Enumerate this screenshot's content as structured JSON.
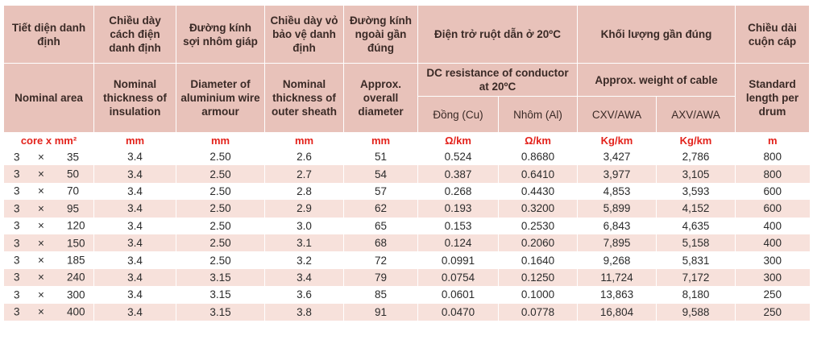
{
  "header": {
    "vi": {
      "area": "Tiết diện danh định",
      "insulation": "Chiều dày cách điện danh định",
      "armour": "Đường kính sợi nhôm giáp",
      "sheath": "Chiều dày vỏ bảo vệ danh định",
      "diameter": "Đường kính ngoài gần đúng",
      "resistance": "Điện trở ruột dẫn ở 20ºC",
      "weight": "Khối lượng gần đúng",
      "length": "Chiều dài cuộn cáp"
    },
    "en": {
      "area": "Nominal area",
      "insulation": "Nominal thickness of insulation",
      "armour": "Diameter of aluminium wire armour",
      "sheath": "Nominal thickness of outer sheath",
      "diameter": "Approx. overall diameter",
      "resistance": "DC resistance of conductor at 20ºC",
      "weight": "Approx. weight of cable",
      "length": "Standard length per drum"
    },
    "sub": {
      "cu": "Đồng (Cu)",
      "al": "Nhôm (Al)",
      "cxv": "CXV/AWA",
      "axv": "AXV/AWA"
    }
  },
  "units": [
    "core x mm²",
    "mm",
    "mm",
    "mm",
    "mm",
    "Ω/km",
    "Ω/km",
    "Kg/km",
    "Kg/km",
    "m"
  ],
  "rows": [
    {
      "core": "3",
      "x": "×",
      "area": "35",
      "ins": "3.4",
      "arm": "2.50",
      "sh": "2.6",
      "dia": "51",
      "cu": "0.524",
      "al": "0.8680",
      "cxv": "3,427",
      "axv": "2,786",
      "len": "800"
    },
    {
      "core": "3",
      "x": "×",
      "area": "50",
      "ins": "3.4",
      "arm": "2.50",
      "sh": "2.7",
      "dia": "54",
      "cu": "0.387",
      "al": "0.6410",
      "cxv": "3,977",
      "axv": "3,105",
      "len": "800"
    },
    {
      "core": "3",
      "x": "×",
      "area": "70",
      "ins": "3.4",
      "arm": "2.50",
      "sh": "2.8",
      "dia": "57",
      "cu": "0.268",
      "al": "0.4430",
      "cxv": "4,853",
      "axv": "3,593",
      "len": "600"
    },
    {
      "core": "3",
      "x": "×",
      "area": "95",
      "ins": "3.4",
      "arm": "2.50",
      "sh": "2.9",
      "dia": "62",
      "cu": "0.193",
      "al": "0.3200",
      "cxv": "5,899",
      "axv": "4,152",
      "len": "600"
    },
    {
      "core": "3",
      "x": "×",
      "area": "120",
      "ins": "3.4",
      "arm": "2.50",
      "sh": "3.0",
      "dia": "65",
      "cu": "0.153",
      "al": "0.2530",
      "cxv": "6,843",
      "axv": "4,635",
      "len": "400"
    },
    {
      "core": "3",
      "x": "×",
      "area": "150",
      "ins": "3.4",
      "arm": "2.50",
      "sh": "3.1",
      "dia": "68",
      "cu": "0.124",
      "al": "0.2060",
      "cxv": "7,895",
      "axv": "5,158",
      "len": "400"
    },
    {
      "core": "3",
      "x": "×",
      "area": "185",
      "ins": "3.4",
      "arm": "2.50",
      "sh": "3.2",
      "dia": "72",
      "cu": "0.0991",
      "al": "0.1640",
      "cxv": "9,268",
      "axv": "5,831",
      "len": "300"
    },
    {
      "core": "3",
      "x": "×",
      "area": "240",
      "ins": "3.4",
      "arm": "3.15",
      "sh": "3.4",
      "dia": "79",
      "cu": "0.0754",
      "al": "0.1250",
      "cxv": "11,724",
      "axv": "7,172",
      "len": "300"
    },
    {
      "core": "3",
      "x": "×",
      "area": "300",
      "ins": "3.4",
      "arm": "3.15",
      "sh": "3.6",
      "dia": "85",
      "cu": "0.0601",
      "al": "0.1000",
      "cxv": "13,863",
      "axv": "8,180",
      "len": "250"
    },
    {
      "core": "3",
      "x": "×",
      "area": "400",
      "ins": "3.4",
      "arm": "3.15",
      "sh": "3.8",
      "dia": "91",
      "cu": "0.0470",
      "al": "0.0778",
      "cxv": "16,804",
      "axv": "9,588",
      "len": "250"
    }
  ]
}
